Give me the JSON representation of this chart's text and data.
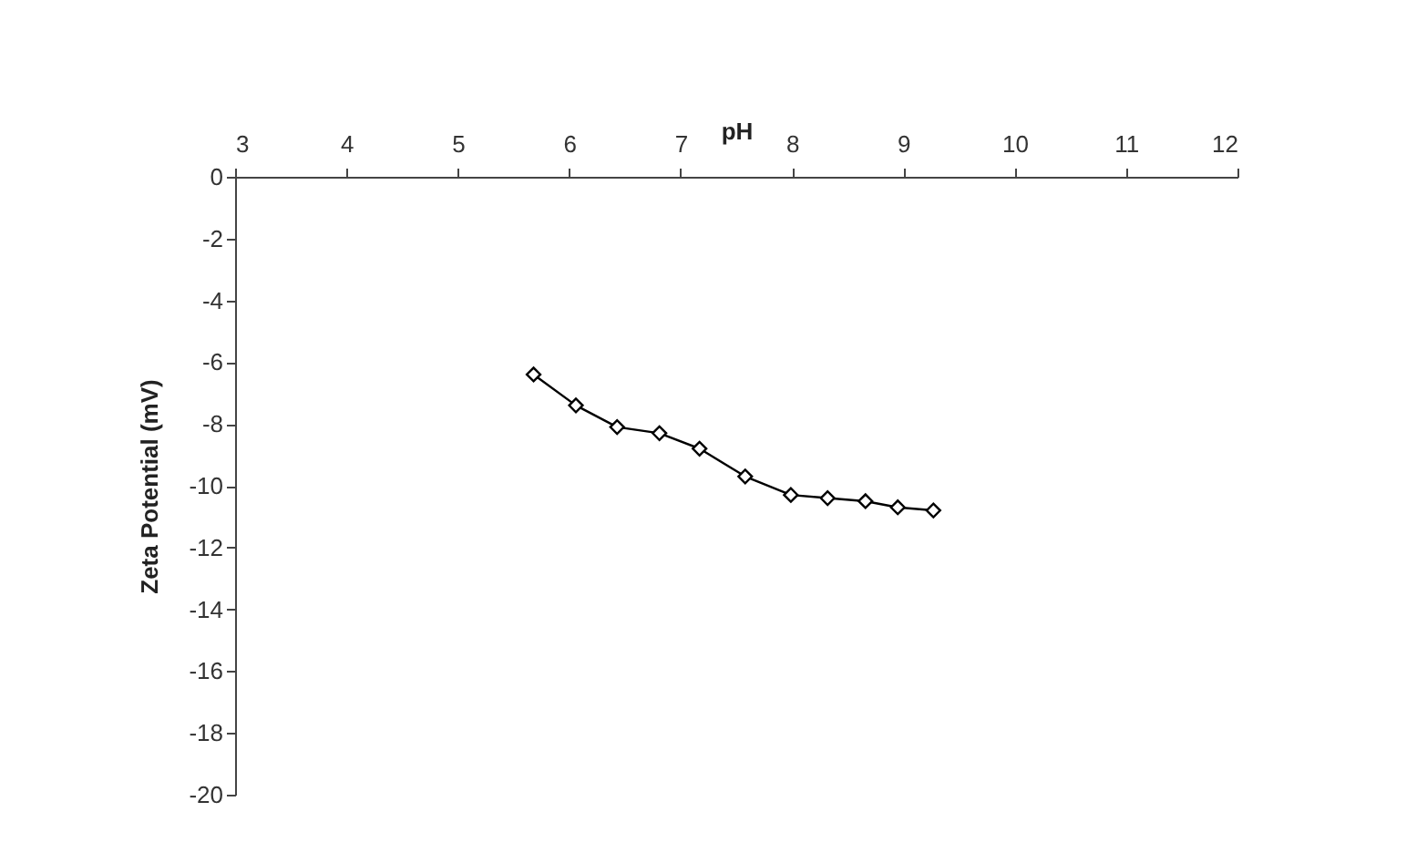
{
  "chart_data": {
    "type": "line",
    "xlabel": "pH",
    "ylabel": "Zeta Potential (mV)",
    "x": [
      5.68,
      6.06,
      6.43,
      6.81,
      7.17,
      7.58,
      7.99,
      8.32,
      8.66,
      8.95,
      9.27
    ],
    "series": [
      {
        "color": "#000000",
        "values": [
          -6.4,
          -7.4,
          -8.1,
          -8.3,
          -8.8,
          -9.7,
          -10.3,
          -10.4,
          -10.5,
          -10.7,
          -10.8
        ]
      }
    ],
    "xlim": [
      3,
      12
    ],
    "xticks": [
      3,
      4,
      5,
      6,
      7,
      8,
      9,
      10,
      11,
      12
    ],
    "ylim": [
      -20,
      0
    ],
    "yticks": [
      0,
      -2,
      -4,
      -6,
      -8,
      -10,
      -12,
      -14,
      -16,
      -18,
      -20
    ],
    "grid": false,
    "marker": "diamond",
    "line_style": "solid"
  }
}
